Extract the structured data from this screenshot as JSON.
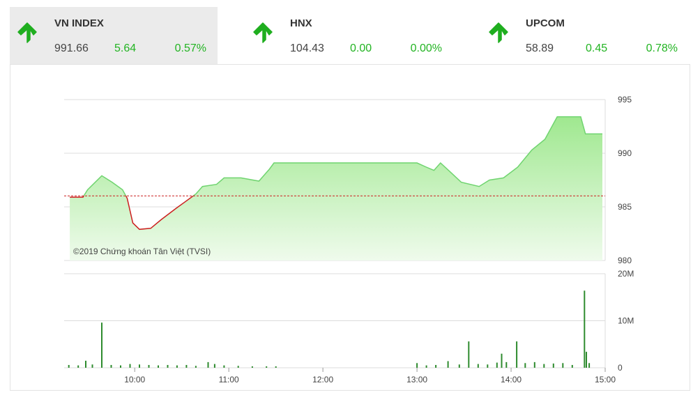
{
  "indices": [
    {
      "name": "VN INDEX",
      "value": "991.66",
      "change": "5.64",
      "percent": "0.57%"
    },
    {
      "name": "HNX",
      "value": "104.43",
      "change": "0.00",
      "percent": "0.00%"
    },
    {
      "name": "UPCOM",
      "value": "58.89",
      "change": "0.45",
      "percent": "0.78%"
    }
  ],
  "chart_data": [
    {
      "type": "area",
      "annotation": "©2019 Chứng khoán Tân Việt (TVSI)",
      "x": [
        9.31,
        9.45,
        9.5,
        9.65,
        9.76,
        9.87,
        9.92,
        9.98,
        10.05,
        10.17,
        10.28,
        10.43,
        10.54,
        10.65,
        10.72,
        10.87,
        10.95,
        11.13,
        11.32,
        11.43,
        11.48,
        13.0,
        13.1,
        13.18,
        13.25,
        13.36,
        13.47,
        13.66,
        13.77,
        13.92,
        14.07,
        14.22,
        14.36,
        14.49,
        14.74,
        14.79,
        14.97
      ],
      "values": [
        985.9,
        985.9,
        986.6,
        987.9,
        987.3,
        986.6,
        985.8,
        983.5,
        982.9,
        983.0,
        983.8,
        984.8,
        985.5,
        986.2,
        986.9,
        987.1,
        987.7,
        987.7,
        987.4,
        988.5,
        989.1,
        989.1,
        988.7,
        988.4,
        989.1,
        988.2,
        987.3,
        986.9,
        987.5,
        987.7,
        988.7,
        990.3,
        991.3,
        993.4,
        993.4,
        991.8,
        991.8
      ],
      "reference": 986.02,
      "color": "#6fd46f",
      "below_color": "#cc1f1f",
      "xlim": [
        9.25,
        15
      ],
      "ylim": [
        980,
        995
      ],
      "yticks": [
        980,
        985,
        990,
        995
      ],
      "grid": true
    },
    {
      "type": "bar",
      "x": [
        9.3,
        9.4,
        9.48,
        9.55,
        9.65,
        9.75,
        9.85,
        9.95,
        10.05,
        10.15,
        10.25,
        10.35,
        10.45,
        10.55,
        10.65,
        10.78,
        10.85,
        10.95,
        11.1,
        11.25,
        11.4,
        11.5,
        13.0,
        13.1,
        13.2,
        13.33,
        13.45,
        13.55,
        13.65,
        13.75,
        13.85,
        13.9,
        13.95,
        14.06,
        14.15,
        14.25,
        14.35,
        14.45,
        14.55,
        14.65,
        14.78,
        14.8,
        14.83
      ],
      "values": [
        600000,
        500000,
        1500000,
        700000,
        9600000,
        600000,
        500000,
        800000,
        700000,
        600000,
        500000,
        600000,
        500000,
        600000,
        400000,
        1200000,
        800000,
        500000,
        400000,
        300000,
        300000,
        300000,
        1000000,
        500000,
        600000,
        1400000,
        700000,
        5600000,
        800000,
        700000,
        1100000,
        3000000,
        1200000,
        5600000,
        1000000,
        1200000,
        800000,
        900000,
        1000000,
        600000,
        16400000,
        3400000,
        1000000
      ],
      "color": "#2e8b2e",
      "xlim": [
        9.25,
        15
      ],
      "ylim": [
        0,
        20000000
      ],
      "yticks": [
        0,
        {
          "value": 10000000,
          "label": "10M"
        },
        {
          "value": 20000000,
          "label": "20M"
        }
      ],
      "xticks": [
        {
          "value": 10,
          "label": "10:00"
        },
        {
          "value": 11,
          "label": "11:00"
        },
        {
          "value": 12,
          "label": "12:00"
        },
        {
          "value": 13,
          "label": "13:00"
        },
        {
          "value": 14,
          "label": "14:00"
        },
        {
          "value": 15,
          "label": "15:00"
        }
      ],
      "grid": true
    }
  ]
}
